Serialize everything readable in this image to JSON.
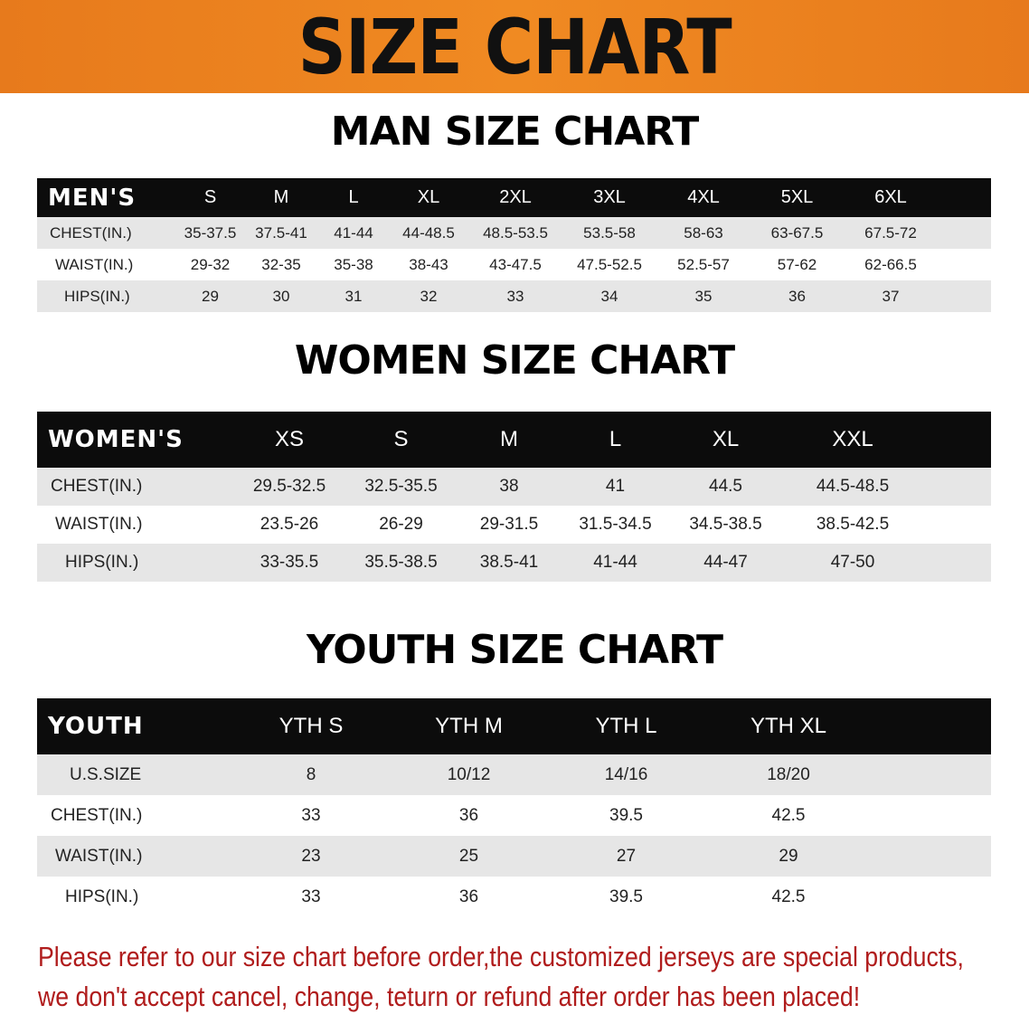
{
  "title": "SIZE CHART",
  "colors": {
    "banner": "#f08a22",
    "header_row": "#0c0c0c",
    "shaded_row": "#e6e6e6",
    "note": "#b01c1c"
  },
  "men": {
    "title": "MAN SIZE CHART",
    "header": [
      "MEN'S",
      "S",
      "M",
      "L",
      "XL",
      "2XL",
      "3XL",
      "4XL",
      "5XL",
      "6XL"
    ],
    "rows": [
      [
        "CHEST(IN.)",
        "35-37.5",
        "37.5-41",
        "41-44",
        "44-48.5",
        "48.5-53.5",
        "53.5-58",
        "58-63",
        "63-67.5",
        "67.5-72"
      ],
      [
        "WAIST(IN.)",
        "29-32",
        "32-35",
        "35-38",
        "38-43",
        "43-47.5",
        "47.5-52.5",
        "52.5-57",
        "57-62",
        "62-66.5"
      ],
      [
        "HIPS(IN.)",
        "29",
        "30",
        "31",
        "32",
        "33",
        "34",
        "35",
        "36",
        "37"
      ]
    ]
  },
  "women": {
    "title": "WOMEN SIZE CHART",
    "header": [
      "WOMEN'S",
      "XS",
      "S",
      "M",
      "L",
      "XL",
      "XXL"
    ],
    "rows": [
      [
        "CHEST(IN.)",
        "29.5-32.5",
        "32.5-35.5",
        "38",
        "41",
        "44.5",
        "44.5-48.5"
      ],
      [
        "WAIST(IN.)",
        "23.5-26",
        "26-29",
        "29-31.5",
        "31.5-34.5",
        "34.5-38.5",
        "38.5-42.5"
      ],
      [
        "HIPS(IN.)",
        "33-35.5",
        "35.5-38.5",
        "38.5-41",
        "41-44",
        "44-47",
        "47-50"
      ]
    ]
  },
  "youth": {
    "title": "YOUTH SIZE CHART",
    "header": [
      "YOUTH",
      "YTH S",
      "YTH M",
      "YTH L",
      "YTH XL"
    ],
    "rows": [
      [
        "U.S.SIZE",
        "8",
        "10/12",
        "14/16",
        "18/20"
      ],
      [
        "CHEST(IN.)",
        "33",
        "36",
        "39.5",
        "42.5"
      ],
      [
        "WAIST(IN.)",
        "23",
        "25",
        "27",
        "29"
      ],
      [
        "HIPS(IN.)",
        "33",
        "36",
        "39.5",
        "42.5"
      ]
    ]
  },
  "note": {
    "line1": "Please refer to our size chart before order,the customized jerseys are special products,",
    "line2": "we don't accept cancel, change, teturn or refund after order has been placed!"
  }
}
